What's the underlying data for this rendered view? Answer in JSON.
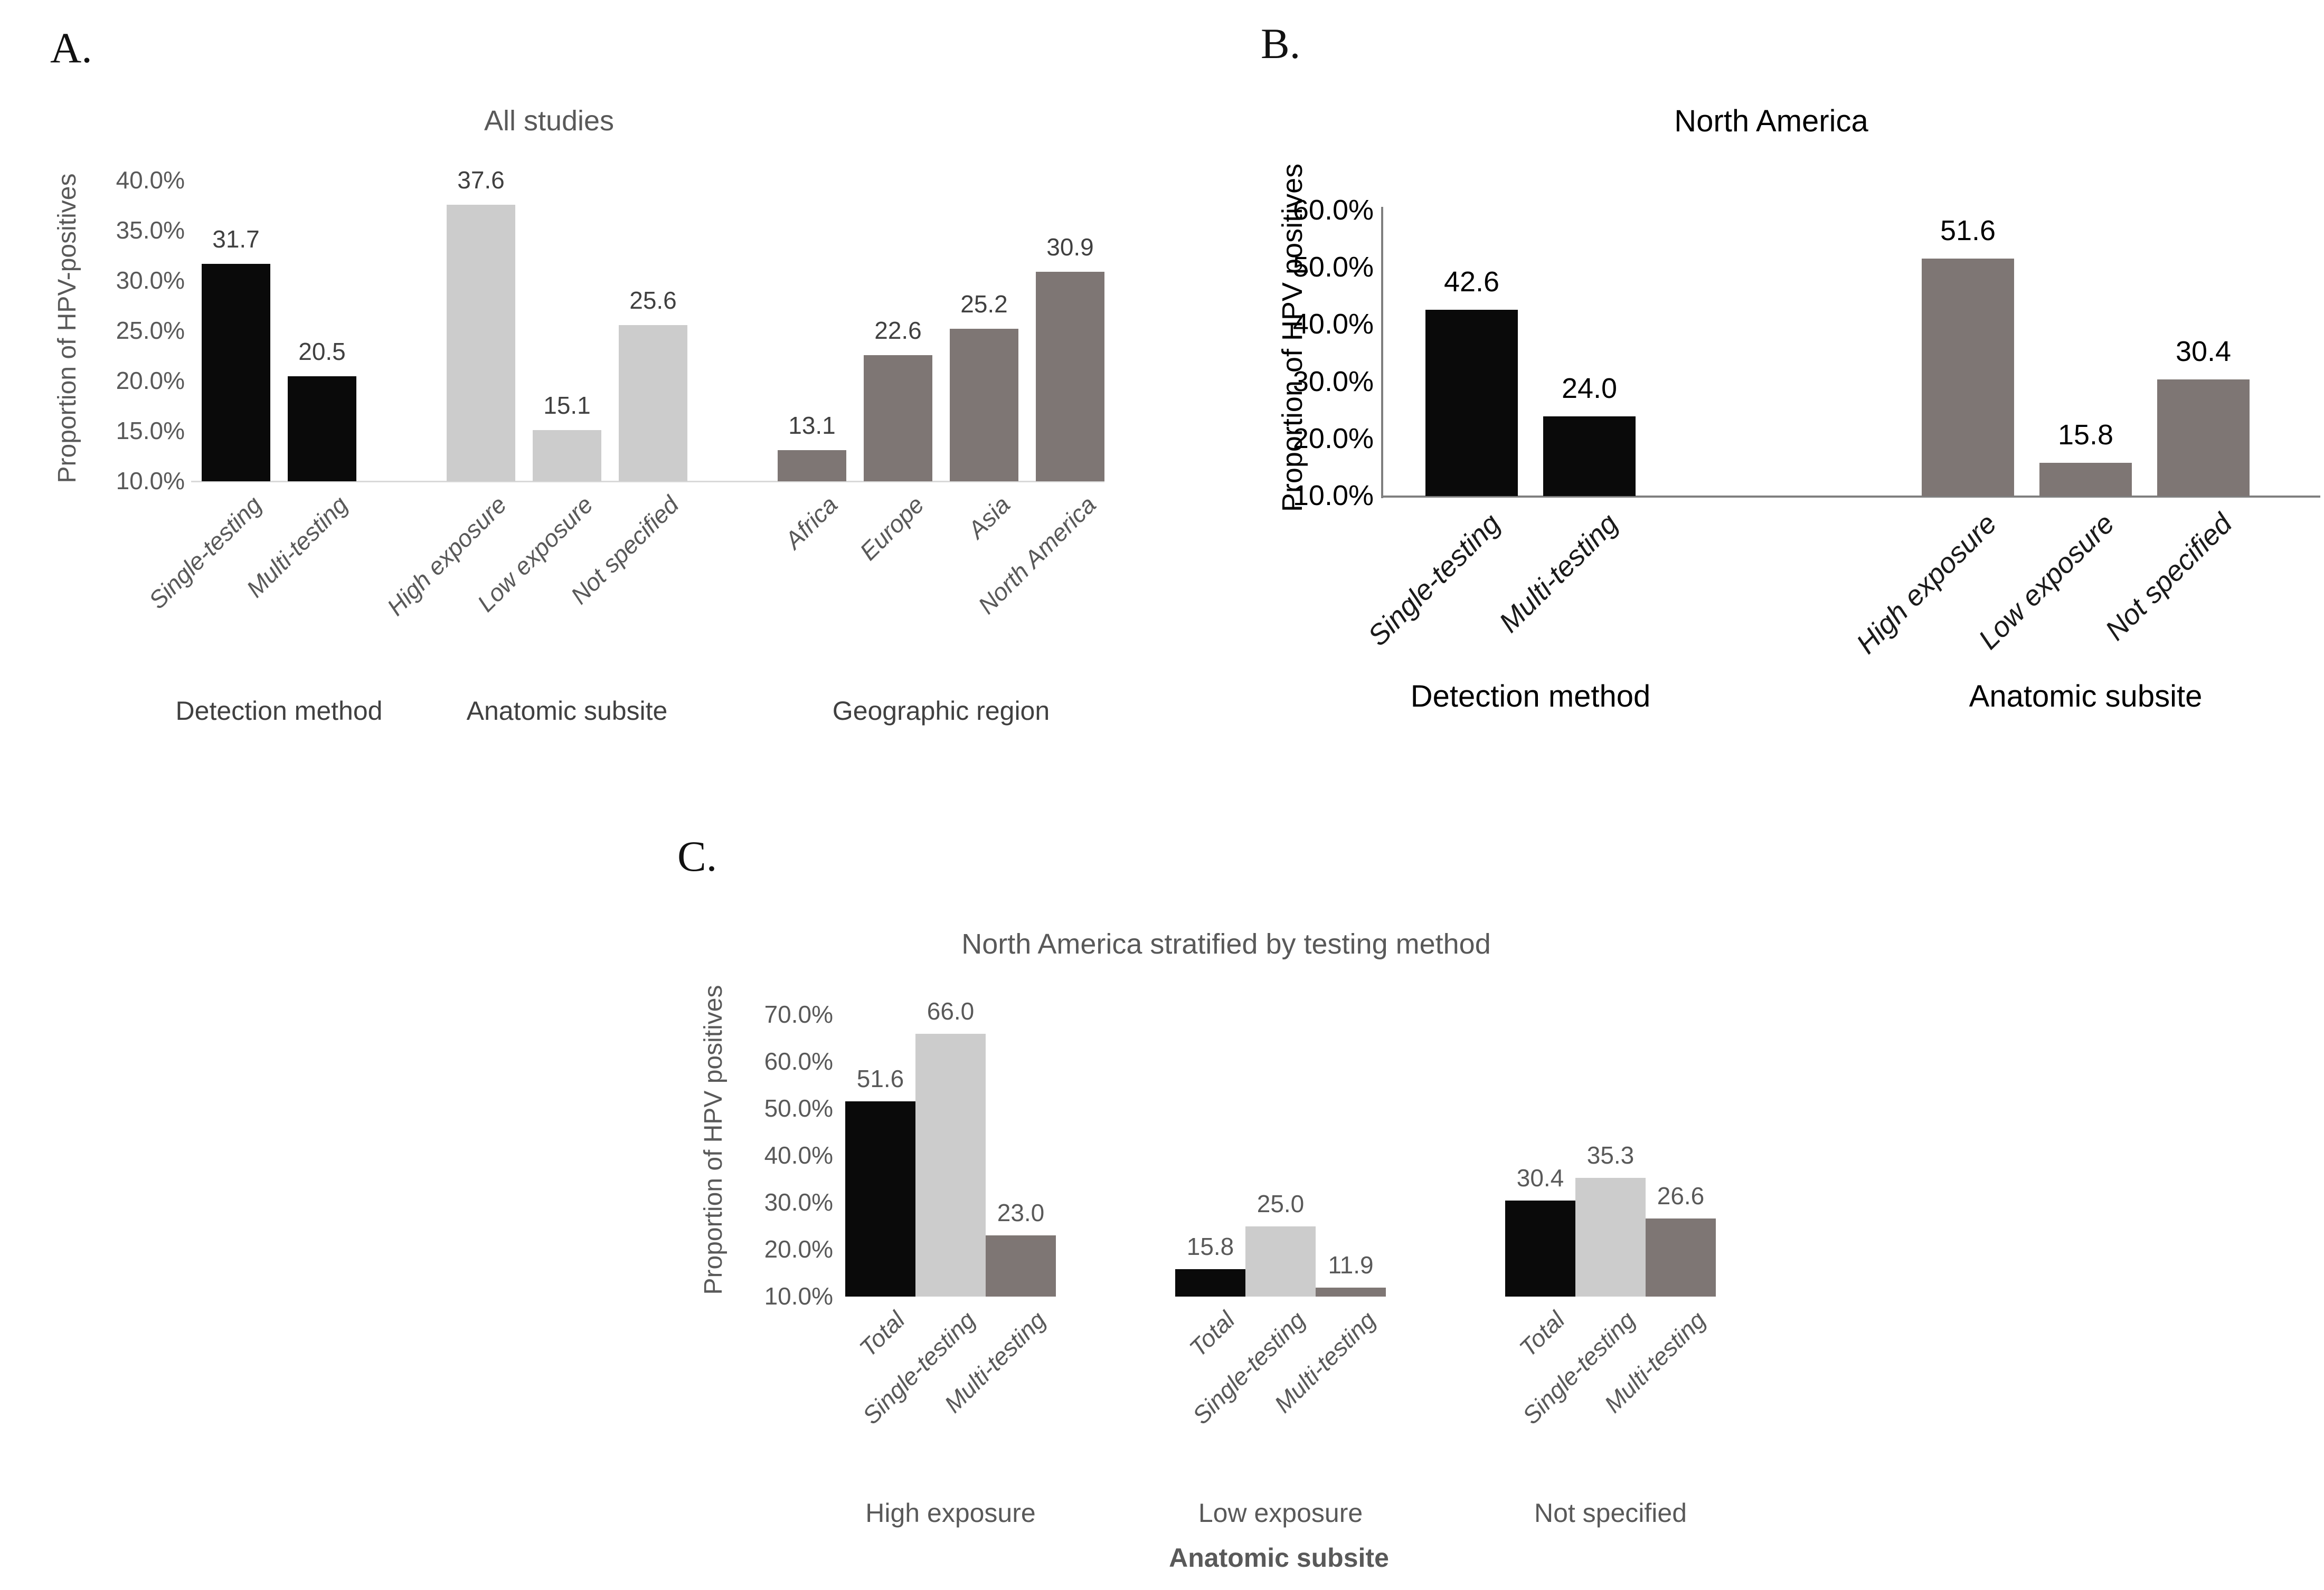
{
  "figure": {
    "background": "#ffffff",
    "description_texts": {
      "panel_a": "A.",
      "panel_b": "B.",
      "panel_c": "C."
    }
  },
  "colors": {
    "black_bar": "#0a0a0a",
    "light_gray_bar": "#cccccc",
    "dark_gray_bar": "#7e7674",
    "axis_light": "#d9d9d9",
    "axis_dark": "#7f7f7f",
    "text_gray": "#595959",
    "text_dark_gray": "#404040",
    "text_black": "#000000"
  },
  "chart_data": [
    {
      "id": "A",
      "type": "bar",
      "panel_label": "A.",
      "title": "All studies",
      "ylabel": "Proportion of HPV-positives",
      "xlabel": "",
      "ymin": 10,
      "ymax": 40,
      "ystep": 5,
      "ytick_labels": [
        "40.0%",
        "35.0%",
        "30.0%",
        "25.0%",
        "20.0%",
        "15.0%",
        "10.0%"
      ],
      "grid": false,
      "legend": "none",
      "groups": [
        {
          "label": "Detection method",
          "series": [
            {
              "category": "Single-testing",
              "value": 31.7,
              "color": "black_bar"
            },
            {
              "category": "Multi-testing",
              "value": 20.5,
              "color": "black_bar"
            }
          ]
        },
        {
          "label": "Anatomic subsite",
          "series": [
            {
              "category": "High exposure",
              "value": 37.6,
              "color": "light_gray_bar"
            },
            {
              "category": "Low exposure",
              "value": 15.1,
              "color": "light_gray_bar"
            },
            {
              "category": "Not specified",
              "value": 25.6,
              "color": "light_gray_bar"
            }
          ]
        },
        {
          "label": "Geographic region",
          "series": [
            {
              "category": "Africa",
              "value": 13.1,
              "color": "dark_gray_bar"
            },
            {
              "category": "Europe",
              "value": 22.6,
              "color": "dark_gray_bar"
            },
            {
              "category": "Asia",
              "value": 25.2,
              "color": "dark_gray_bar"
            },
            {
              "category": "North America",
              "value": 30.9,
              "color": "dark_gray_bar"
            }
          ]
        }
      ]
    },
    {
      "id": "B",
      "type": "bar",
      "panel_label": "B.",
      "title": "North America",
      "ylabel": "Proportion of HPV positives",
      "xlabel": "",
      "ymin": 10,
      "ymax": 60,
      "ystep": 10,
      "ytick_labels": [
        "60.0%",
        "50.0%",
        "40.0%",
        "30.0%",
        "20.0%",
        "10.0%"
      ],
      "grid": false,
      "legend": "none",
      "groups": [
        {
          "label": "Detection method",
          "series": [
            {
              "category": "Single-testing",
              "value": 42.6,
              "color": "black_bar"
            },
            {
              "category": "Multi-testing",
              "value": 24.0,
              "color": "black_bar"
            }
          ]
        },
        {
          "label": "Anatomic subsite",
          "series": [
            {
              "category": "High exposure",
              "value": 51.6,
              "color": "dark_gray_bar"
            },
            {
              "category": "Low exposure",
              "value": 15.8,
              "color": "dark_gray_bar"
            },
            {
              "category": "Not specified",
              "value": 30.4,
              "color": "dark_gray_bar"
            }
          ]
        }
      ]
    },
    {
      "id": "C",
      "type": "bar",
      "panel_label": "C.",
      "title": "North America stratified by testing method",
      "ylabel": "Proportion of HPV positives",
      "xlabel": "Anatomic subsite",
      "ymin": 10,
      "ymax": 70,
      "ystep": 10,
      "ytick_labels": [
        "70.0%",
        "60.0%",
        "50.0%",
        "40.0%",
        "30.0%",
        "20.0%",
        "10.0%"
      ],
      "grid": false,
      "legend": "none",
      "groups": [
        {
          "label": "High exposure",
          "series": [
            {
              "category": "Total",
              "value": 51.6,
              "color": "black_bar"
            },
            {
              "category": "Single-testing",
              "value": 66.0,
              "color": "light_gray_bar"
            },
            {
              "category": "Multi-testing",
              "value": 23.0,
              "color": "dark_gray_bar"
            }
          ]
        },
        {
          "label": "Low exposure",
          "series": [
            {
              "category": "Total",
              "value": 15.8,
              "color": "black_bar"
            },
            {
              "category": "Single-testing",
              "value": 25.0,
              "color": "light_gray_bar"
            },
            {
              "category": "Multi-testing",
              "value": 11.9,
              "color": "dark_gray_bar"
            }
          ]
        },
        {
          "label": "Not specified",
          "series": [
            {
              "category": "Total",
              "value": 30.4,
              "color": "black_bar"
            },
            {
              "category": "Single-testing",
              "value": 35.3,
              "color": "light_gray_bar"
            },
            {
              "category": "Multi-testing",
              "value": 26.6,
              "color": "dark_gray_bar"
            }
          ]
        }
      ]
    }
  ]
}
